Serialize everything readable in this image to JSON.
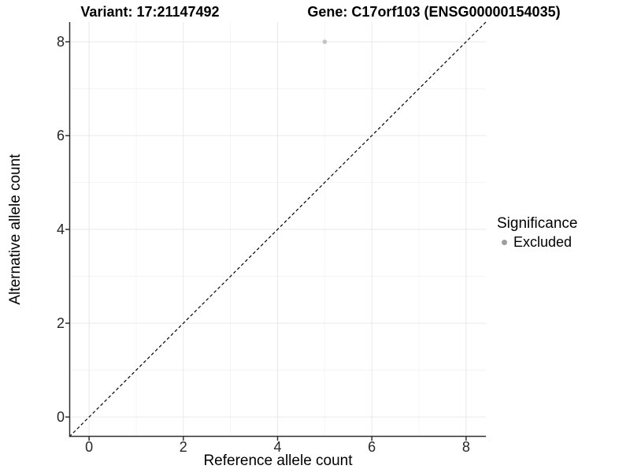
{
  "chart_data": {
    "type": "scatter",
    "panel_titles": [
      {
        "id": "variant",
        "text": "Variant: 17:21147492"
      },
      {
        "id": "gene",
        "text": "Gene: C17orf103 (ENSG00000154035)"
      }
    ],
    "xlabel": "Reference allele count",
    "ylabel": "Alternative allele count",
    "xlim": [
      -0.42,
      8.42
    ],
    "ylim": [
      -0.42,
      8.42
    ],
    "x_major_ticks": [
      0,
      2,
      4,
      6,
      8
    ],
    "y_major_ticks": [
      0,
      2,
      4,
      6,
      8
    ],
    "x_minor_ticks": [
      1,
      3,
      5,
      7
    ],
    "y_minor_ticks": [
      1,
      3,
      5,
      7
    ],
    "grid": "major-and-minor",
    "series": [
      {
        "name": "Excluded",
        "color": "#c3c3c3",
        "marker": "circle",
        "points": [
          {
            "x": 5,
            "y": 8
          }
        ]
      }
    ],
    "reference_line": {
      "kind": "identity",
      "slope": 1,
      "intercept": 0,
      "style": "dashed",
      "color": "#000000"
    },
    "legend": {
      "position": "right",
      "title": "Significance",
      "entries": [
        {
          "label": "Excluded",
          "marker": "circle",
          "marker_color": "#9e9e9e"
        }
      ]
    }
  },
  "colors": {
    "background": "#ffffff",
    "grid_major": "#e8e8e8",
    "grid_minor": "#f4f4f4",
    "axis_line": "#2f2f2f",
    "tick_label": "#262626",
    "title_text": "#000000"
  }
}
